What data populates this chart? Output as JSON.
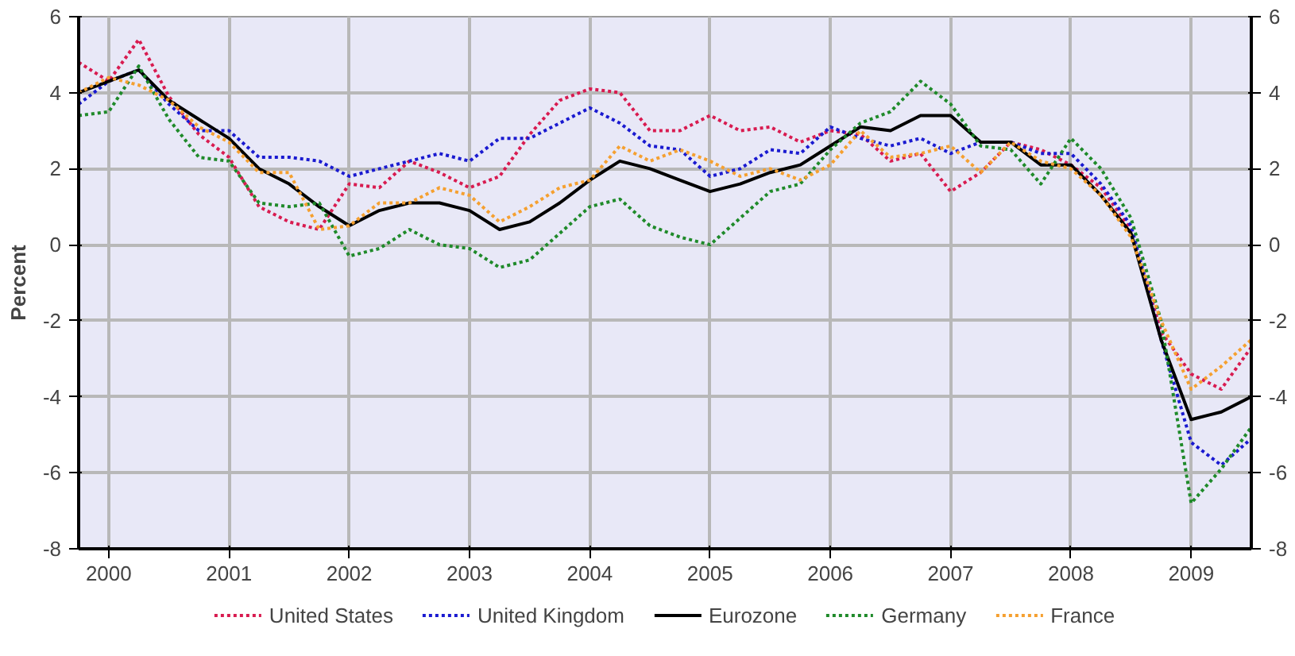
{
  "chart_data": {
    "type": "line",
    "ylabel": "Percent",
    "x": [
      1999.75,
      2000.0,
      2000.25,
      2000.5,
      2000.75,
      2001.0,
      2001.25,
      2001.5,
      2001.75,
      2002.0,
      2002.25,
      2002.5,
      2002.75,
      2003.0,
      2003.25,
      2003.5,
      2003.75,
      2004.0,
      2004.25,
      2004.5,
      2004.75,
      2005.0,
      2005.25,
      2005.5,
      2005.75,
      2006.0,
      2006.25,
      2006.5,
      2006.75,
      2007.0,
      2007.25,
      2007.5,
      2007.75,
      2008.0,
      2008.25,
      2008.5,
      2008.75,
      2009.0,
      2009.25,
      2009.5
    ],
    "series": [
      {
        "name": "United States",
        "color": "#d81b50",
        "line_style": "dotted",
        "values": [
          4.8,
          4.3,
          5.4,
          3.9,
          2.9,
          2.3,
          1.0,
          0.6,
          0.4,
          1.6,
          1.5,
          2.2,
          1.9,
          1.5,
          1.8,
          2.9,
          3.8,
          4.1,
          4.0,
          3.0,
          3.0,
          3.4,
          3.0,
          3.1,
          2.7,
          3.0,
          2.9,
          2.2,
          2.4,
          1.4,
          1.9,
          2.7,
          2.5,
          2.1,
          1.5,
          0.4,
          -2.3,
          -3.4,
          -3.8,
          -2.7
        ]
      },
      {
        "name": "United Kingdom",
        "color": "#1a1ad0",
        "line_style": "dotted",
        "values": [
          3.7,
          4.3,
          4.6,
          3.7,
          3.0,
          3.0,
          2.3,
          2.3,
          2.2,
          1.8,
          2.0,
          2.2,
          2.4,
          2.2,
          2.8,
          2.8,
          3.2,
          3.6,
          3.2,
          2.6,
          2.5,
          1.8,
          2.0,
          2.5,
          2.4,
          3.1,
          2.8,
          2.6,
          2.8,
          2.4,
          2.7,
          2.7,
          2.4,
          2.4,
          1.6,
          0.5,
          -2.5,
          -5.2,
          -5.8,
          -5.1
        ]
      },
      {
        "name": "Eurozone",
        "color": "#000000",
        "line_style": "solid",
        "values": [
          4.0,
          4.3,
          4.6,
          3.8,
          3.3,
          2.8,
          2.0,
          1.6,
          1.0,
          0.5,
          0.9,
          1.1,
          1.1,
          0.9,
          0.4,
          0.6,
          1.1,
          1.7,
          2.2,
          2.0,
          1.7,
          1.4,
          1.6,
          1.9,
          2.1,
          2.6,
          3.1,
          3.0,
          3.4,
          3.4,
          2.7,
          2.7,
          2.1,
          2.1,
          1.3,
          0.3,
          -2.5,
          -4.6,
          -4.4,
          -4.0
        ]
      },
      {
        "name": "Germany",
        "color": "#1f8a2a",
        "line_style": "dotted",
        "values": [
          3.4,
          3.5,
          4.7,
          3.3,
          2.3,
          2.2,
          1.1,
          1.0,
          1.1,
          -0.3,
          -0.1,
          0.4,
          0.0,
          -0.1,
          -0.6,
          -0.4,
          0.3,
          1.0,
          1.2,
          0.5,
          0.2,
          0.0,
          0.7,
          1.4,
          1.6,
          2.5,
          3.2,
          3.5,
          4.3,
          3.7,
          2.6,
          2.5,
          1.6,
          2.8,
          2.0,
          0.7,
          -2.0,
          -6.8,
          -5.9,
          -4.8
        ]
      },
      {
        "name": "France",
        "color": "#f5a030",
        "line_style": "dotted",
        "values": [
          4.0,
          4.4,
          4.2,
          3.8,
          3.1,
          2.7,
          1.9,
          1.9,
          0.4,
          0.5,
          1.1,
          1.1,
          1.5,
          1.3,
          0.6,
          1.0,
          1.5,
          1.7,
          2.6,
          2.2,
          2.5,
          2.2,
          1.8,
          2.0,
          1.7,
          2.1,
          3.0,
          2.3,
          2.4,
          2.6,
          1.9,
          2.7,
          2.2,
          2.0,
          1.3,
          0.2,
          -2.0,
          -3.8,
          -3.2,
          -2.5
        ]
      }
    ],
    "xlim": [
      1999.75,
      2009.5
    ],
    "xticks": [
      2000,
      2001,
      2002,
      2003,
      2004,
      2005,
      2006,
      2007,
      2008,
      2009
    ],
    "ylim": [
      -8,
      6
    ],
    "yticks": [
      -8,
      -6,
      -4,
      -2,
      0,
      2,
      4,
      6
    ],
    "y2lim": [
      -8,
      6
    ],
    "y2ticks": [
      -8,
      -6,
      -4,
      -2,
      0,
      2,
      4,
      6
    ],
    "grid": true,
    "legend": "bottom"
  }
}
